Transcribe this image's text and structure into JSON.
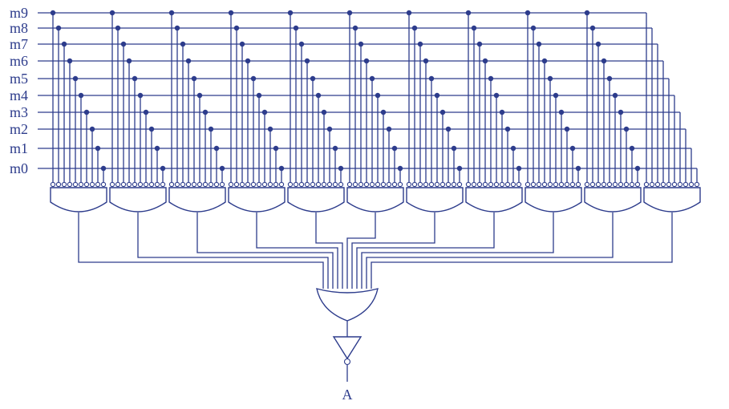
{
  "colors": {
    "ink": "#2d3c8c",
    "background": "#ffffff"
  },
  "input_lines": [
    "m9",
    "m8",
    "m7",
    "m6",
    "m5",
    "m4",
    "m3",
    "m2",
    "m1",
    "m0"
  ],
  "gate_count": 11,
  "output_label": "A"
}
